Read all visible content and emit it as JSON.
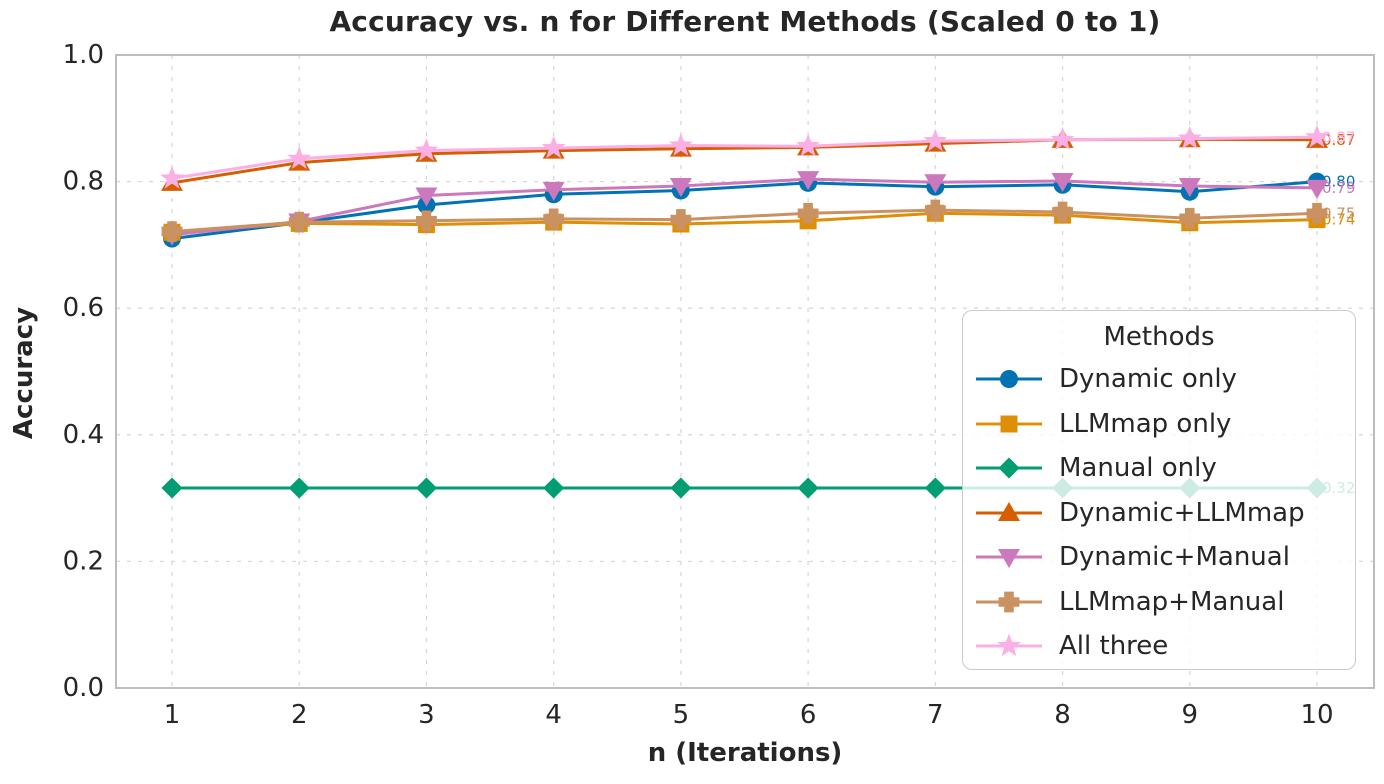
{
  "title": "Accuracy vs. n for Different Methods (Scaled 0 to 1)",
  "chart_data": {
    "type": "line",
    "title": "Accuracy vs. n for Different Methods (Scaled 0 to 1)",
    "xlabel": "n (Iterations)",
    "ylabel": "Accuracy",
    "grid": true,
    "grid_style": "dashed",
    "background_color": "#ffffff",
    "xlim": [
      0.55,
      10.45
    ],
    "ylim": [
      0.0,
      1.0
    ],
    "xticks": [
      {
        "label": "1",
        "value": 1
      },
      {
        "label": "2",
        "value": 2
      },
      {
        "label": "3",
        "value": 3
      },
      {
        "label": "4",
        "value": 4
      },
      {
        "label": "5",
        "value": 5
      },
      {
        "label": "6",
        "value": 6
      },
      {
        "label": "7",
        "value": 7
      },
      {
        "label": "8",
        "value": 8
      },
      {
        "label": "9",
        "value": 9
      },
      {
        "label": "10",
        "value": 10
      }
    ],
    "yticks": [
      {
        "label": "0.0",
        "value": 0.0
      },
      {
        "label": "0.2",
        "value": 0.2
      },
      {
        "label": "0.4",
        "value": 0.4
      },
      {
        "label": "0.6",
        "value": 0.6
      },
      {
        "label": "0.8",
        "value": 0.8
      },
      {
        "label": "1.0",
        "value": 1.0
      }
    ],
    "x": [
      1,
      2,
      3,
      4,
      5,
      6,
      7,
      8,
      9,
      10
    ],
    "series": [
      {
        "name": "Dynamic only",
        "color": "#0173B2",
        "marker": "circle",
        "values": [
          0.71,
          0.735,
          0.763,
          0.78,
          0.786,
          0.798,
          0.792,
          0.795,
          0.784,
          0.8
        ],
        "end_label": "0.80"
      },
      {
        "name": "LLMmap only",
        "color": "#DE8F05",
        "marker": "square",
        "values": [
          0.72,
          0.734,
          0.732,
          0.736,
          0.733,
          0.738,
          0.75,
          0.747,
          0.735,
          0.74
        ],
        "end_label": "0.74"
      },
      {
        "name": "Manual only",
        "color": "#029E73",
        "marker": "diamond",
        "values": [
          0.316,
          0.316,
          0.316,
          0.316,
          0.316,
          0.316,
          0.316,
          0.316,
          0.316,
          0.316
        ],
        "end_label": "0.32"
      },
      {
        "name": "Dynamic+LLMmap",
        "color": "#D55E00",
        "marker": "triangle-up",
        "values": [
          0.798,
          0.83,
          0.844,
          0.849,
          0.852,
          0.854,
          0.86,
          0.866,
          0.867,
          0.866
        ],
        "end_label": "0.87"
      },
      {
        "name": "Dynamic+Manual",
        "color": "#CC78BC",
        "marker": "triangle-down",
        "values": [
          0.716,
          0.737,
          0.778,
          0.787,
          0.793,
          0.804,
          0.799,
          0.801,
          0.793,
          0.79
        ],
        "end_label": "0.79"
      },
      {
        "name": "LLMmap+Manual",
        "color": "#CA9161",
        "marker": "plus",
        "values": [
          0.721,
          0.736,
          0.738,
          0.741,
          0.74,
          0.75,
          0.755,
          0.752,
          0.742,
          0.75
        ],
        "end_label": "0.75"
      },
      {
        "name": "All three",
        "color": "#FBAFE4",
        "marker": "star",
        "values": [
          0.805,
          0.836,
          0.849,
          0.853,
          0.857,
          0.856,
          0.864,
          0.866,
          0.868,
          0.87
        ],
        "end_label": "0.87"
      }
    ],
    "legend": {
      "title": "Methods",
      "position": "center right"
    }
  }
}
